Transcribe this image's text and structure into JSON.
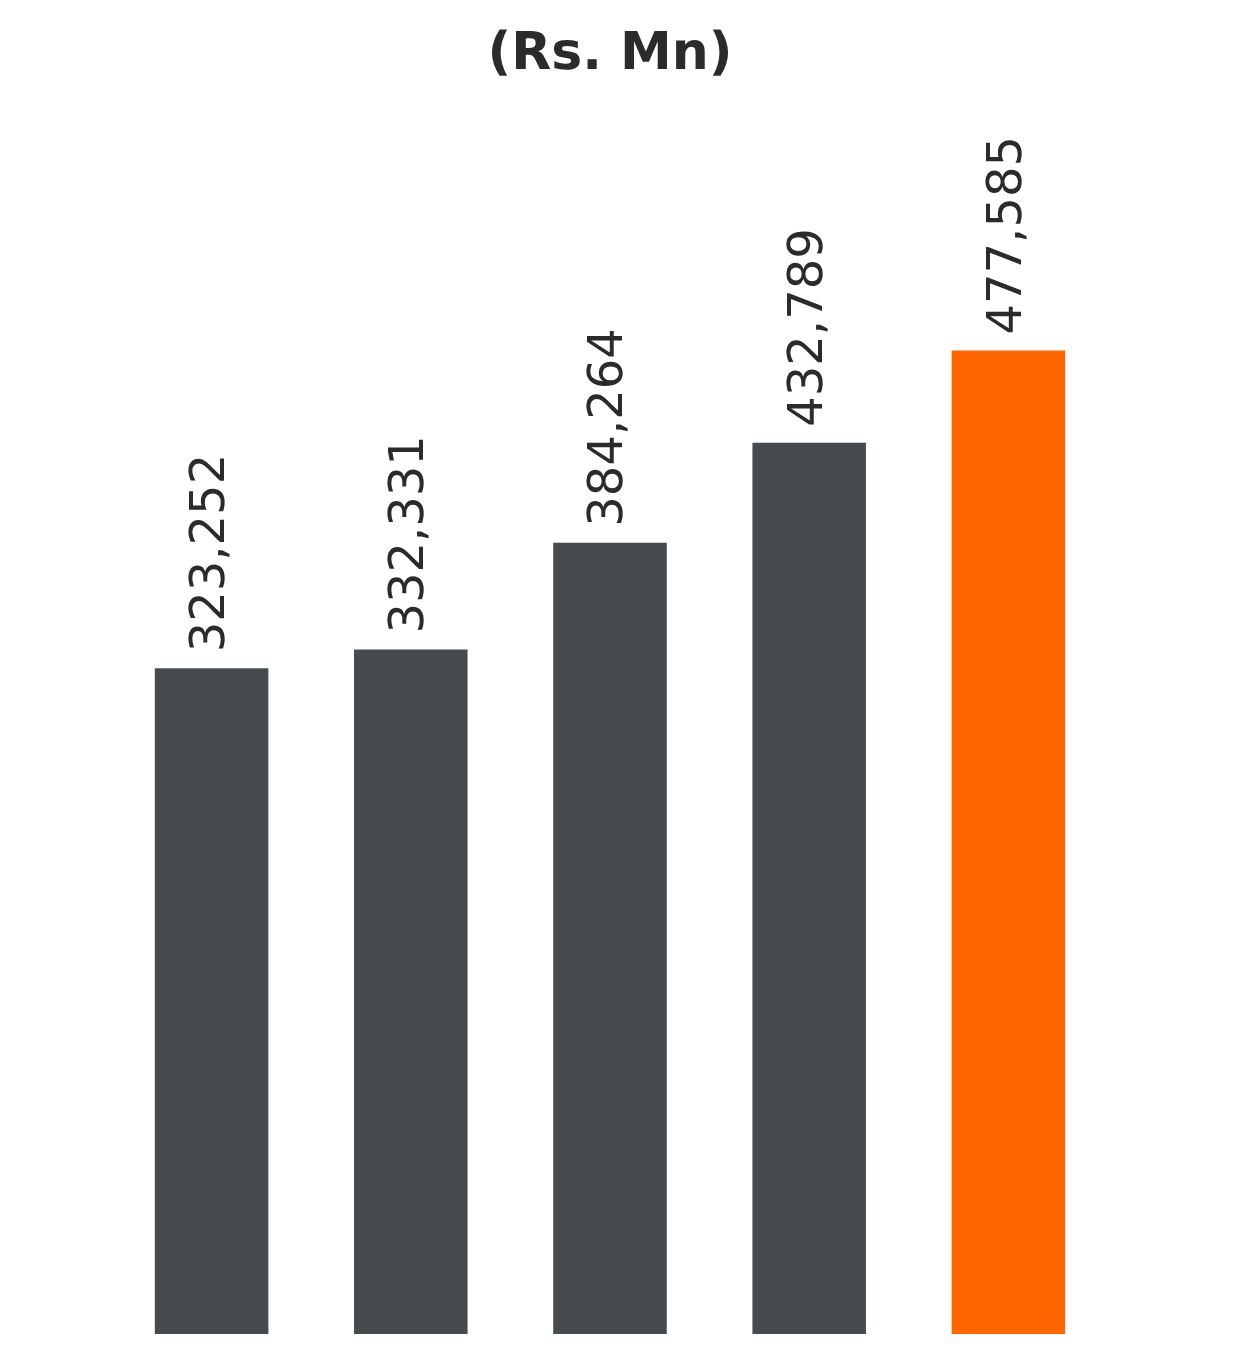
{
  "chart_data": {
    "type": "bar",
    "title": "(Rs. Mn)",
    "categories": [
      null,
      null,
      null,
      null,
      null
    ],
    "values": [
      323252,
      332331,
      384264,
      432789,
      477585
    ],
    "colors": [
      "#464c4d",
      "#464c4d",
      "#464c4d",
      "#464c4d",
      "#ff6600"
    ],
    "value_labels": [
      "323,252",
      "332,331",
      "384,264",
      "432,789",
      "477,585"
    ],
    "grid": false,
    "legend": false
  }
}
